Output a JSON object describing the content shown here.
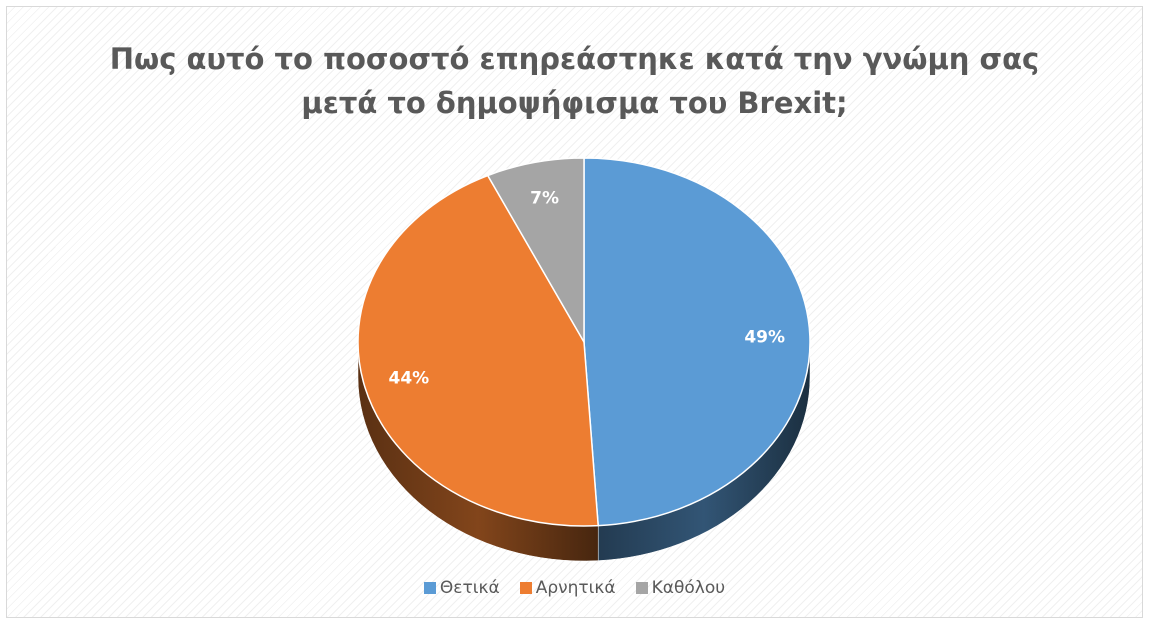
{
  "chart_data": {
    "type": "pie",
    "title_lines": [
      "Πως αυτό το ποσοστό επηρεάστηκε κατά την γνώμη σας",
      "μετά το δημοψήφισμα του Brexit;"
    ],
    "categories": [
      "Θετικά",
      "Αρνητικά",
      "Καθόλου"
    ],
    "values": [
      49,
      44,
      7
    ],
    "data_labels": [
      "49%",
      "44%",
      "7%"
    ],
    "colors": [
      "#5b9bd5",
      "#ed7d31",
      "#a5a5a5"
    ],
    "legend_position": "bottom",
    "style": "3d"
  }
}
